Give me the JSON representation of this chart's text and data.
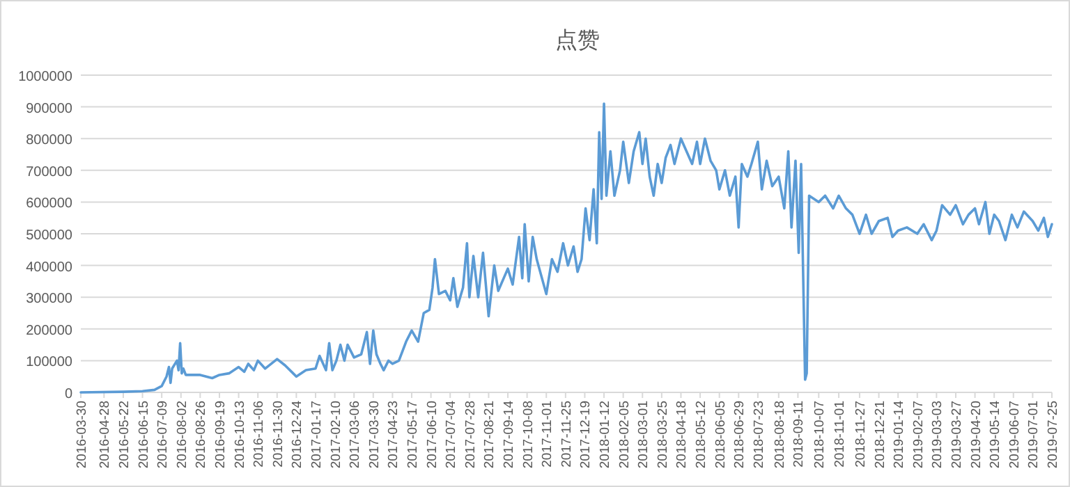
{
  "chart_data": {
    "type": "line",
    "title": "点赞",
    "color": "#5b9bd5",
    "grid": "y",
    "ylim": [
      0,
      1000000
    ],
    "yticks": [
      0,
      100000,
      200000,
      300000,
      400000,
      500000,
      600000,
      700000,
      800000,
      900000,
      1000000
    ],
    "xlim": [
      "2016-03-30",
      "2019-07-25"
    ],
    "xticks": [
      "2016-03-30",
      "2016-04-28",
      "2016-05-22",
      "2016-06-15",
      "2016-07-09",
      "2016-08-02",
      "2016-08-26",
      "2016-09-19",
      "2016-10-13",
      "2016-11-06",
      "2016-11-30",
      "2016-12-24",
      "2017-01-17",
      "2017-02-10",
      "2017-03-06",
      "2017-03-30",
      "2017-04-23",
      "2017-05-17",
      "2017-06-10",
      "2017-07-04",
      "2017-07-28",
      "2017-08-21",
      "2017-09-14",
      "2017-10-08",
      "2017-11-01",
      "2017-11-25",
      "2017-12-19",
      "2018-01-12",
      "2018-02-05",
      "2018-03-01",
      "2018-03-25",
      "2018-04-18",
      "2018-05-12",
      "2018-06-05",
      "2018-06-29",
      "2018-07-23",
      "2018-08-18",
      "2018-09-11",
      "2018-10-07",
      "2018-11-01",
      "2018-11-27",
      "2018-12-21",
      "2019-01-14",
      "2019-02-07",
      "2019-03-03",
      "2019-03-27",
      "2019-04-20",
      "2019-05-14",
      "2019-06-07",
      "2019-07-01",
      "2019-07-25"
    ],
    "x": [
      "2016-03-30",
      "2016-05-22",
      "2016-06-15",
      "2016-06-30",
      "2016-07-09",
      "2016-07-15",
      "2016-07-18",
      "2016-07-20",
      "2016-07-22",
      "2016-07-28",
      "2016-07-30",
      "2016-08-01",
      "2016-08-03",
      "2016-08-05",
      "2016-08-08",
      "2016-08-26",
      "2016-09-10",
      "2016-09-19",
      "2016-10-01",
      "2016-10-13",
      "2016-10-20",
      "2016-10-25",
      "2016-11-01",
      "2016-11-06",
      "2016-11-15",
      "2016-11-30",
      "2016-12-10",
      "2016-12-20",
      "2016-12-24",
      "2017-01-05",
      "2017-01-17",
      "2017-01-22",
      "2017-01-30",
      "2017-02-03",
      "2017-02-07",
      "2017-02-12",
      "2017-02-17",
      "2017-02-22",
      "2017-02-26",
      "2017-03-06",
      "2017-03-15",
      "2017-03-22",
      "2017-03-26",
      "2017-03-30",
      "2017-04-03",
      "2017-04-08",
      "2017-04-12",
      "2017-04-18",
      "2017-04-23",
      "2017-05-01",
      "2017-05-10",
      "2017-05-17",
      "2017-05-25",
      "2017-06-01",
      "2017-06-08",
      "2017-06-12",
      "2017-06-15",
      "2017-06-20",
      "2017-06-28",
      "2017-07-04",
      "2017-07-08",
      "2017-07-13",
      "2017-07-20",
      "2017-07-25",
      "2017-07-28",
      "2017-08-02",
      "2017-08-08",
      "2017-08-14",
      "2017-08-21",
      "2017-08-28",
      "2017-09-02",
      "2017-09-14",
      "2017-09-20",
      "2017-09-28",
      "2017-10-02",
      "2017-10-05",
      "2017-10-10",
      "2017-10-15",
      "2017-10-20",
      "2017-11-01",
      "2017-11-08",
      "2017-11-15",
      "2017-11-22",
      "2017-11-28",
      "2017-12-05",
      "2017-12-10",
      "2017-12-15",
      "2017-12-20",
      "2017-12-25",
      "2017-12-30",
      "2018-01-03",
      "2018-01-06",
      "2018-01-09",
      "2018-01-12",
      "2018-01-15",
      "2018-01-20",
      "2018-01-25",
      "2018-02-01",
      "2018-02-05",
      "2018-02-12",
      "2018-02-18",
      "2018-02-25",
      "2018-03-01",
      "2018-03-05",
      "2018-03-10",
      "2018-03-15",
      "2018-03-20",
      "2018-03-25",
      "2018-03-30",
      "2018-04-05",
      "2018-04-10",
      "2018-04-18",
      "2018-04-25",
      "2018-05-02",
      "2018-05-08",
      "2018-05-12",
      "2018-05-18",
      "2018-05-25",
      "2018-06-01",
      "2018-06-05",
      "2018-06-12",
      "2018-06-18",
      "2018-06-25",
      "2018-06-29",
      "2018-07-03",
      "2018-07-10",
      "2018-07-15",
      "2018-07-23",
      "2018-07-28",
      "2018-08-03",
      "2018-08-10",
      "2018-08-18",
      "2018-08-25",
      "2018-08-30",
      "2018-09-03",
      "2018-09-08",
      "2018-09-12",
      "2018-09-15",
      "2018-09-20",
      "2018-09-22",
      "2018-09-25",
      "2018-10-07",
      "2018-10-15",
      "2018-10-25",
      "2018-11-01",
      "2018-11-10",
      "2018-11-18",
      "2018-11-27",
      "2018-12-05",
      "2018-12-12",
      "2018-12-21",
      "2019-01-01",
      "2019-01-07",
      "2019-01-14",
      "2019-01-25",
      "2019-02-07",
      "2019-02-15",
      "2019-02-25",
      "2019-03-03",
      "2019-03-10",
      "2019-03-20",
      "2019-03-27",
      "2019-04-05",
      "2019-04-12",
      "2019-04-20",
      "2019-04-25",
      "2019-05-03",
      "2019-05-08",
      "2019-05-14",
      "2019-05-20",
      "2019-05-28",
      "2019-06-05",
      "2019-06-12",
      "2019-06-20",
      "2019-07-01",
      "2019-07-08",
      "2019-07-15",
      "2019-07-20",
      "2019-07-25"
    ],
    "values": [
      0,
      2000,
      4000,
      8000,
      20000,
      50000,
      80000,
      30000,
      75000,
      100000,
      70000,
      155000,
      60000,
      75000,
      55000,
      55000,
      45000,
      55000,
      60000,
      80000,
      65000,
      90000,
      70000,
      100000,
      75000,
      105000,
      85000,
      60000,
      50000,
      70000,
      75000,
      115000,
      70000,
      155000,
      70000,
      100000,
      150000,
      100000,
      150000,
      110000,
      120000,
      190000,
      90000,
      195000,
      120000,
      90000,
      70000,
      100000,
      90000,
      100000,
      160000,
      195000,
      160000,
      250000,
      260000,
      330000,
      420000,
      310000,
      320000,
      290000,
      360000,
      270000,
      330000,
      470000,
      300000,
      430000,
      300000,
      440000,
      240000,
      400000,
      320000,
      390000,
      340000,
      490000,
      360000,
      530000,
      350000,
      490000,
      420000,
      310000,
      420000,
      380000,
      470000,
      400000,
      460000,
      380000,
      420000,
      580000,
      480000,
      640000,
      470000,
      820000,
      610000,
      910000,
      620000,
      760000,
      620000,
      700000,
      790000,
      660000,
      760000,
      820000,
      720000,
      800000,
      680000,
      620000,
      720000,
      660000,
      740000,
      780000,
      720000,
      800000,
      760000,
      720000,
      790000,
      720000,
      800000,
      730000,
      700000,
      640000,
      700000,
      620000,
      680000,
      520000,
      720000,
      680000,
      720000,
      790000,
      640000,
      730000,
      650000,
      680000,
      580000,
      760000,
      520000,
      730000,
      440000,
      720000,
      40000,
      60000,
      620000,
      600000,
      620000,
      580000,
      620000,
      580000,
      560000,
      500000,
      560000,
      500000,
      540000,
      550000,
      490000,
      510000,
      520000,
      500000,
      530000,
      480000,
      510000,
      590000,
      560000,
      590000,
      530000,
      560000,
      580000,
      530000,
      600000,
      500000,
      560000,
      540000,
      480000,
      560000,
      520000,
      570000,
      540000,
      510000,
      550000,
      490000,
      530000
    ]
  }
}
